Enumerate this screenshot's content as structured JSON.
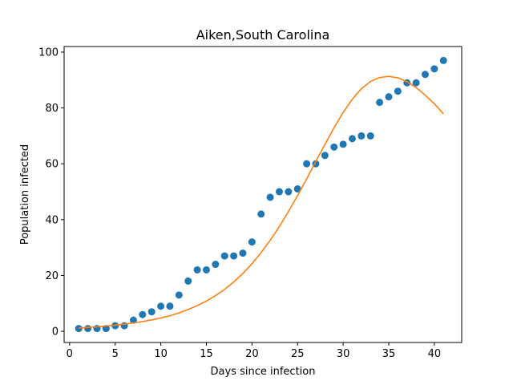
{
  "chart_data": {
    "type": "scatter",
    "title": "Aiken,South Carolina",
    "xlabel": "Days since infection",
    "ylabel": "Population infected",
    "xlim": [
      -0.6,
      43.0
    ],
    "ylim": [
      -4.0,
      102.0
    ],
    "xticks": [
      0,
      5,
      10,
      15,
      20,
      25,
      30,
      35,
      40
    ],
    "yticks": [
      0,
      20,
      40,
      60,
      80,
      100
    ],
    "grid": false,
    "legend": "none",
    "series": [
      {
        "kind": "scatter",
        "color": "#1f77b4",
        "x": [
          1,
          2,
          3,
          4,
          5,
          6,
          7,
          8,
          9,
          10,
          11,
          12,
          13,
          14,
          15,
          16,
          17,
          18,
          19,
          20,
          21,
          22,
          23,
          24,
          25,
          26,
          27,
          28,
          29,
          30,
          31,
          32,
          33,
          34,
          35,
          36,
          37,
          38,
          39,
          40,
          41
        ],
        "y": [
          1,
          1,
          1,
          1,
          2,
          2,
          4,
          6,
          7,
          9,
          9,
          13,
          18,
          22,
          22,
          24,
          27,
          27,
          28,
          32,
          42,
          48,
          50,
          50,
          51,
          60,
          60,
          63,
          66,
          67,
          69,
          70,
          70,
          82,
          84,
          86,
          89,
          89,
          92,
          94,
          97
        ]
      },
      {
        "kind": "line",
        "color": "#ff7f0e",
        "x": [
          1,
          2,
          3,
          4,
          5,
          6,
          7,
          8,
          9,
          10,
          11,
          12,
          13,
          14,
          15,
          16,
          17,
          18,
          19,
          20,
          21,
          22,
          23,
          24,
          25,
          26,
          27,
          28,
          29,
          30,
          31,
          32,
          33,
          34,
          35,
          36,
          37,
          38,
          39,
          40,
          41
        ],
        "y": [
          1.2,
          1.4,
          1.6,
          1.9,
          2.2,
          2.6,
          3.0,
          3.5,
          4.1,
          4.8,
          5.6,
          6.6,
          7.8,
          9.2,
          10.8,
          12.8,
          15.0,
          17.7,
          20.7,
          24.2,
          28.2,
          32.6,
          37.5,
          42.9,
          48.6,
          54.6,
          60.8,
          66.9,
          72.9,
          78.4,
          83.1,
          86.9,
          89.5,
          90.9,
          91.3,
          90.8,
          89.4,
          87.3,
          84.6,
          81.5,
          77.9
        ]
      }
    ]
  }
}
